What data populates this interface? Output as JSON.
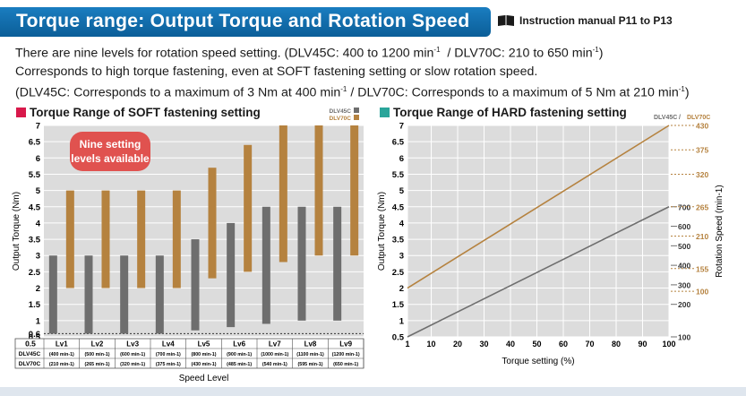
{
  "header": {
    "title": "Torque range: Output Torque and Rotation Speed",
    "manual_ref": "Instruction manual P11 to P13"
  },
  "description": {
    "line1_a": "There are nine levels for rotation speed setting. (DLV45C: 400 to 1200 min",
    "line1_b": "  / DLV70C: 210 to 650 min",
    "line1_c": ")",
    "line2": "Corresponds to high torque fastening, even at SOFT fastening setting or slow rotation speed.",
    "line3_a": "(DLV45C: Corresponds to a maximum of 3 Nm at 400 min",
    "line3_b": " / DLV70C: Corresponds to a maximum of 5 Nm at 210 min",
    "line3_c": ")",
    "sup": "-1"
  },
  "colors": {
    "title_blue": "#0f68a8",
    "soft_marker": "#d8194b",
    "hard_marker": "#2aa59a",
    "dlv45c": "#6e6e6e",
    "dlv70c": "#b5823f",
    "plot_bg": "#dcdcdc",
    "badge": "#e0524f"
  },
  "chart_data": [
    {
      "type": "bar",
      "subtype": "floating-range",
      "title": "Torque Range of SOFT fastening setting",
      "xlabel": "Speed Level",
      "ylabel": "Output Torque (Nm)",
      "ylim": [
        0.5,
        7
      ],
      "yticks": [
        "7",
        "6.5",
        "6",
        "5.5",
        "5",
        "4.5",
        "4",
        "3.5",
        "3",
        "2.5",
        "2",
        "1.5",
        "1",
        "0.6",
        "0.5"
      ],
      "ytick_values": [
        7,
        6.5,
        6,
        5.5,
        5,
        4.5,
        4,
        3.5,
        3,
        2.5,
        2,
        1.5,
        1,
        0.6,
        0.5
      ],
      "legend": [
        "DLV45C",
        "DLV70C"
      ],
      "badge": [
        "Nine setting",
        "levels available"
      ],
      "categories": [
        "Lv1",
        "Lv2",
        "Lv3",
        "Lv4",
        "Lv5",
        "Lv6",
        "Lv7",
        "Lv8",
        "Lv9"
      ],
      "row_labels": [
        "DLV45C",
        "DLV70C"
      ],
      "dlv45c_speed": [
        "(400 min-1)",
        "(500 min-1)",
        "(600 min-1)",
        "(700 min-1)",
        "(800 min-1)",
        "(900 min-1)",
        "(1000 min-1)",
        "(1100 min-1)",
        "(1200 min-1)"
      ],
      "dlv70c_speed": [
        "(210 min-1)",
        "(265 min-1)",
        "(320 min-1)",
        "(375 min-1)",
        "(430 min-1)",
        "(485 min-1)",
        "(540 min-1)",
        "(595 min-1)",
        "(650 min-1)"
      ],
      "series": [
        {
          "name": "DLV45C",
          "low": [
            0.6,
            0.6,
            0.6,
            0.6,
            0.7,
            0.8,
            0.9,
            1.0,
            1.0
          ],
          "high": [
            3,
            3,
            3,
            3,
            3.5,
            4,
            4.5,
            4.5,
            4.5
          ]
        },
        {
          "name": "DLV70C",
          "low": [
            2,
            2,
            2,
            2,
            2.3,
            2.5,
            2.8,
            3,
            3
          ],
          "high": [
            5,
            5,
            5,
            5,
            5.7,
            6.4,
            7,
            7,
            7
          ]
        }
      ]
    },
    {
      "type": "line",
      "title": "Torque Range of HARD fastening setting",
      "xlabel": "Torque setting (%)",
      "ylabel": "Output Torque (Nm)",
      "y2label": "Rotation Speed (min-1)",
      "xlim": [
        1,
        100
      ],
      "ylim": [
        0.5,
        7
      ],
      "xticks": [
        "1",
        "10",
        "20",
        "30",
        "40",
        "50",
        "60",
        "70",
        "80",
        "90",
        "100"
      ],
      "xtick_values": [
        1,
        10,
        20,
        30,
        40,
        50,
        60,
        70,
        80,
        90,
        100
      ],
      "yticks": [
        "7",
        "6.5",
        "6",
        "5.5",
        "5",
        "4.5",
        "4",
        "3.5",
        "3",
        "2.5",
        "2",
        "1.5",
        "1",
        "0.5"
      ],
      "ytick_values": [
        7,
        6.5,
        6,
        5.5,
        5,
        4.5,
        4,
        3.5,
        3,
        2.5,
        2,
        1.5,
        1,
        0.5
      ],
      "legend": [
        "DLV45C",
        "DLV70C"
      ],
      "legend_sep": " / ",
      "right_dlv45c_ticks": [
        {
          "label": "700",
          "t": 4.5
        },
        {
          "label": "600",
          "t": 3.9
        },
        {
          "label": "500",
          "t": 3.3
        },
        {
          "label": "400",
          "t": 2.7
        },
        {
          "label": "300",
          "t": 2.1
        },
        {
          "label": "200",
          "t": 1.5
        },
        {
          "label": "100",
          "t": 0.5
        }
      ],
      "right_dlv70c_ticks": [
        {
          "label": "430",
          "t": 7
        },
        {
          "label": "375",
          "t": 6.25
        },
        {
          "label": "320",
          "t": 5.5
        },
        {
          "label": "265",
          "t": 4.5
        },
        {
          "label": "210",
          "t": 3.6
        },
        {
          "label": "155",
          "t": 2.6
        },
        {
          "label": "100",
          "t": 1.9
        }
      ],
      "series": [
        {
          "name": "DLV45C",
          "x": [
            1,
            100
          ],
          "y": [
            0.5,
            4.5
          ]
        },
        {
          "name": "DLV70C",
          "x": [
            1,
            100
          ],
          "y": [
            2,
            7
          ]
        }
      ]
    }
  ]
}
